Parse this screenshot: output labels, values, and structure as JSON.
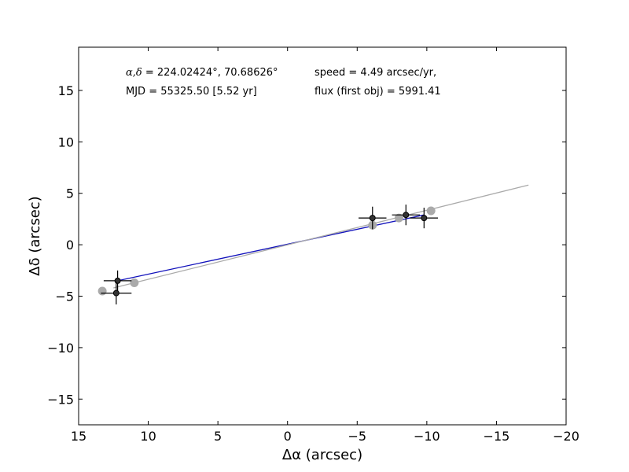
{
  "chart_data": {
    "type": "scatter",
    "xlabel": "Δα (arcsec)",
    "ylabel": "Δδ (arcsec)",
    "xlim": [
      15,
      -20
    ],
    "ylim": [
      -17.5,
      19.2
    ],
    "xticks": [
      15,
      10,
      5,
      0,
      -5,
      -10,
      -15,
      -20
    ],
    "xtick_labels": [
      "15",
      "10",
      "5",
      "0",
      "−5",
      "−10",
      "−15",
      "−20"
    ],
    "yticks": [
      15,
      10,
      5,
      0,
      -5,
      -10,
      -15
    ],
    "ytick_labels": [
      "15",
      "10",
      "5",
      "0",
      "−5",
      "−10",
      "−15"
    ],
    "grid": false,
    "annotations": {
      "coords_label": "α,δ",
      "coords_value": " = 224.02424°, 70.68626°",
      "mjd": "MJD = 55325.50 [5.52 yr]",
      "speed": "speed = 4.49 arcsec/yr,",
      "flux": "flux (first obj) = 5991.41"
    },
    "series": [
      {
        "color": "#aaaaaa",
        "marker": "circle",
        "points": [
          {
            "x": 13.3,
            "y": -4.5
          },
          {
            "x": 11.0,
            "y": -3.7
          },
          {
            "x": -6.1,
            "y": 1.9
          },
          {
            "x": -8.0,
            "y": 2.6
          },
          {
            "x": -10.3,
            "y": 3.3
          }
        ]
      },
      {
        "color": "#000000",
        "marker": "circle",
        "error_bars": true,
        "points": [
          {
            "x": 12.2,
            "y": -3.5,
            "xerr": 1.0,
            "yerr": 1.0
          },
          {
            "x": 12.3,
            "y": -4.7,
            "xerr": 1.1,
            "yerr": 1.1
          },
          {
            "x": -6.1,
            "y": 2.6,
            "xerr": 1.0,
            "yerr": 1.1
          },
          {
            "x": -8.5,
            "y": 2.9,
            "xerr": 1.0,
            "yerr": 1.0
          },
          {
            "x": -9.8,
            "y": 2.6,
            "xerr": 1.0,
            "yerr": 1.0
          }
        ]
      }
    ],
    "fit_lines": [
      {
        "color": "#1111bb",
        "x": [
          12.2,
          -9.8
        ],
        "y": [
          -3.5,
          2.9
        ]
      },
      {
        "color": "#aaaaaa",
        "x": [
          12.5,
          -17.3
        ],
        "y": [
          -4.2,
          5.8
        ]
      }
    ]
  }
}
